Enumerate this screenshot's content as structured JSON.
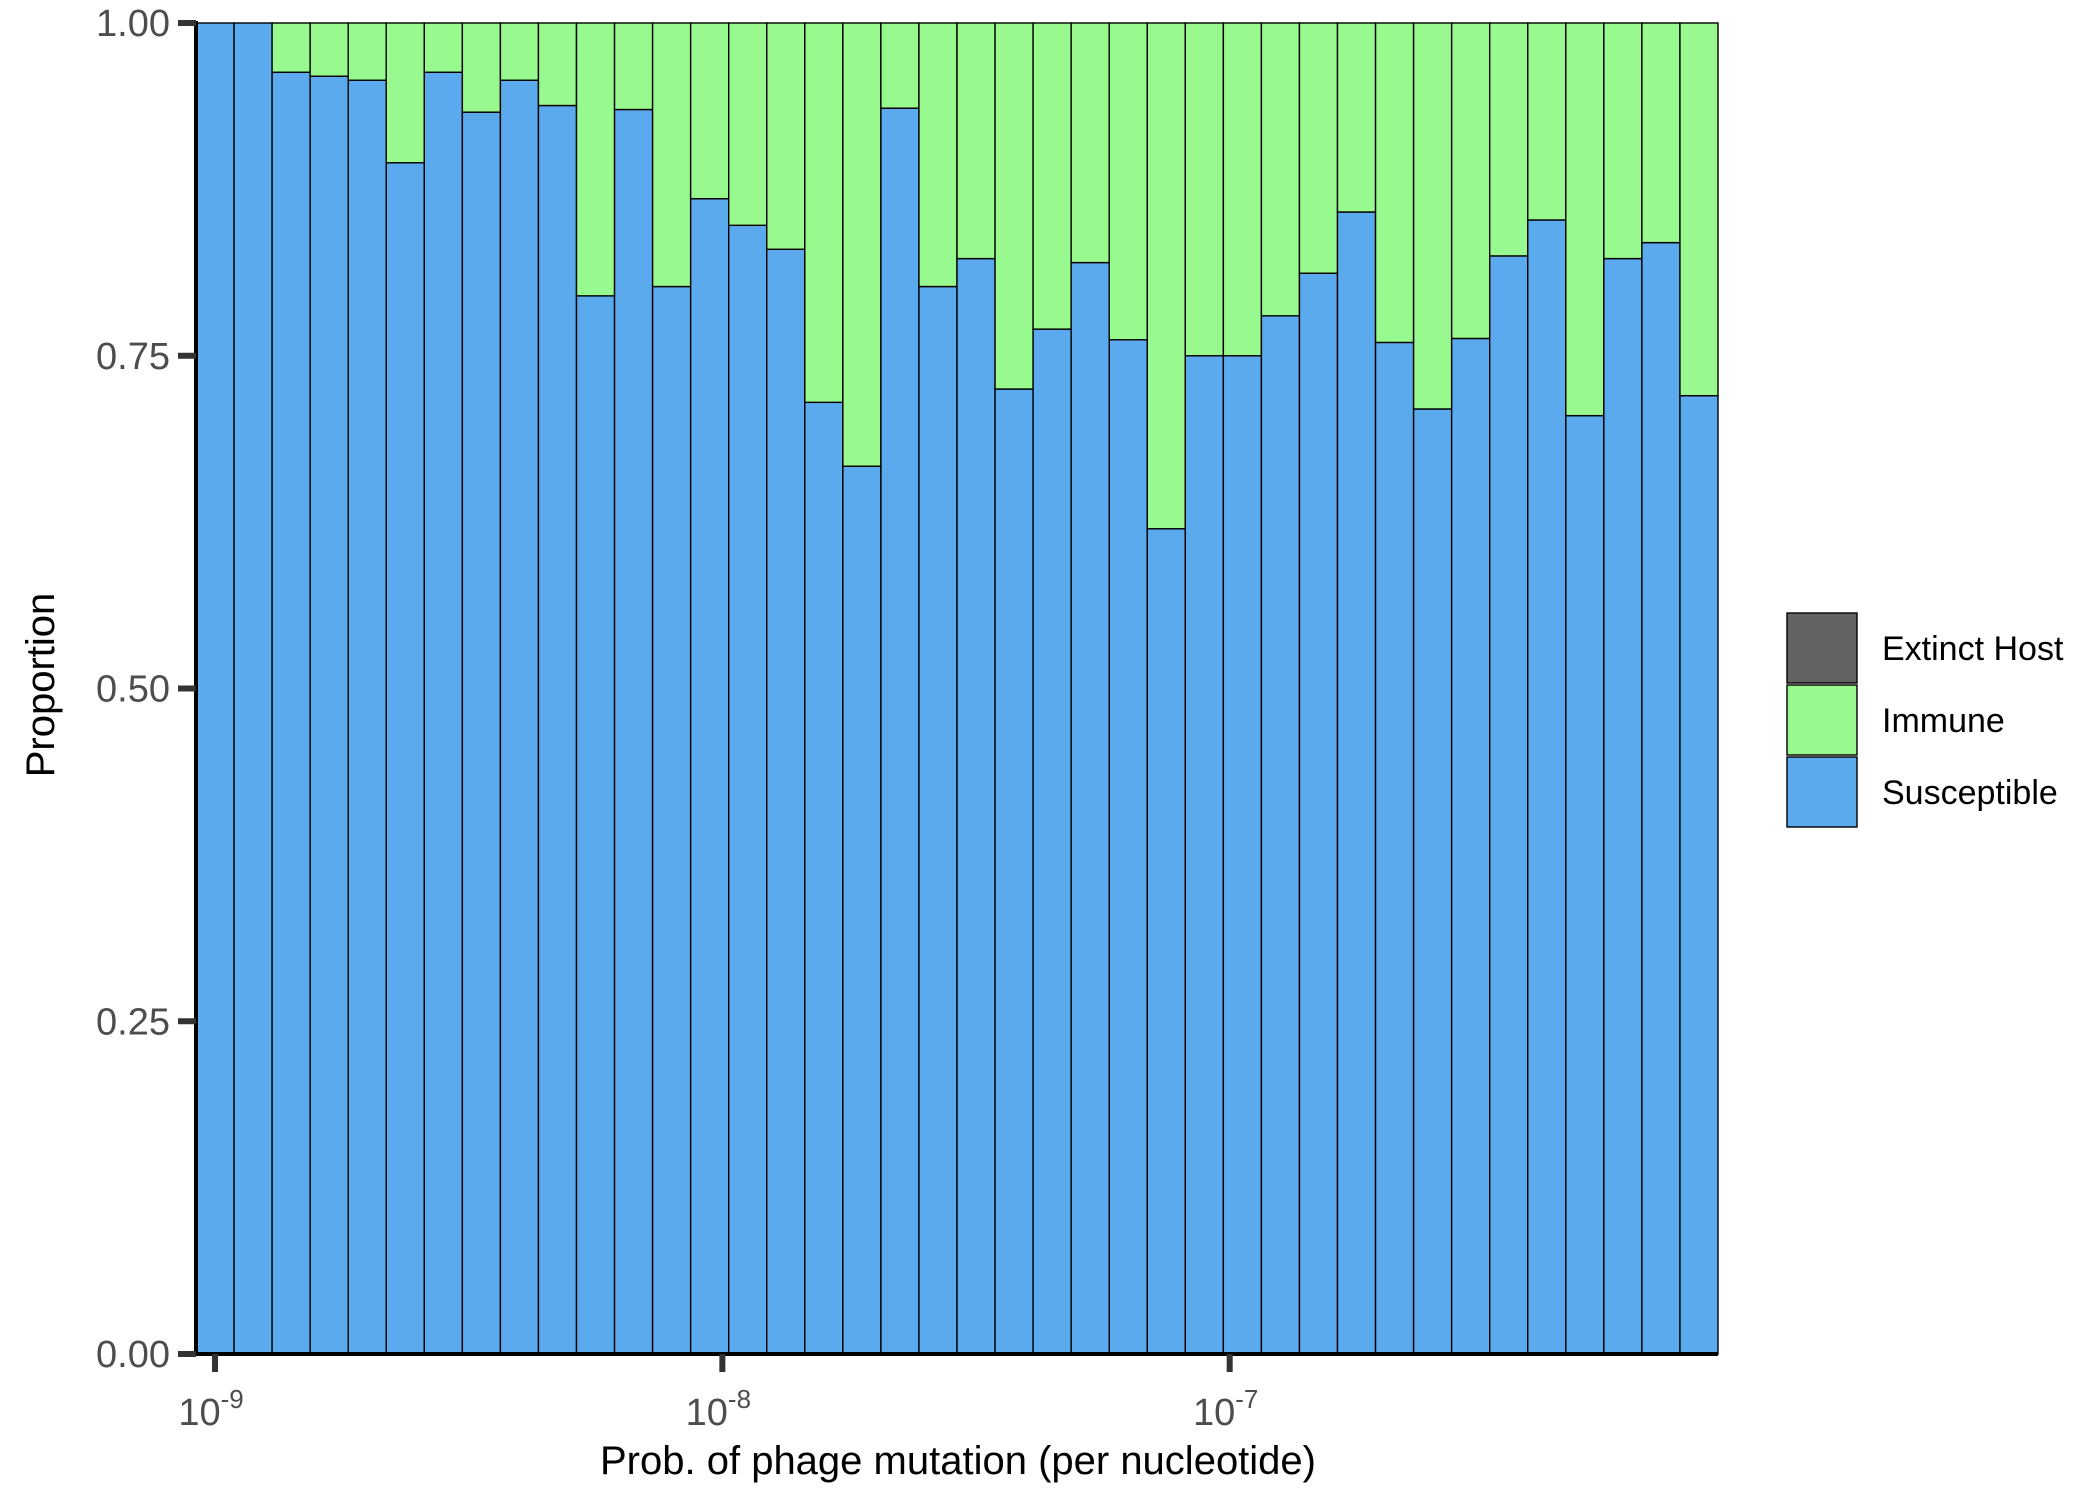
{
  "chart_data": {
    "type": "bar",
    "stacked": true,
    "normalized": true,
    "xlabel": "Prob. of phage mutation (per nucleotide)",
    "ylabel": "Proportion",
    "x_scale": "log10",
    "x_ticks": [
      {
        "value": 1e-09,
        "base": "10",
        "exp": "-9"
      },
      {
        "value": 1e-08,
        "base": "10",
        "exp": "-8"
      },
      {
        "value": 1e-07,
        "base": "10",
        "exp": "-7"
      }
    ],
    "y_ticks": [
      "0.00",
      "0.25",
      "0.50",
      "0.75",
      "1.00"
    ],
    "ylim": [
      0,
      1
    ],
    "bin_centers_log10": [
      -9.0,
      -8.925,
      -8.85,
      -8.775,
      -8.7,
      -8.625,
      -8.55,
      -8.475,
      -8.4,
      -8.325,
      -8.25,
      -8.175,
      -8.1,
      -8.025,
      -7.95,
      -7.875,
      -7.8,
      -7.725,
      -7.65,
      -7.575,
      -7.5,
      -7.425,
      -7.35,
      -7.275,
      -7.2,
      -7.125,
      -7.05,
      -6.975,
      -6.9,
      -6.825,
      -6.75,
      -6.675,
      -6.6,
      -6.525,
      -6.45,
      -6.375,
      -6.3,
      -6.225,
      -6.15,
      -6.075
    ],
    "series": [
      {
        "name": "Susceptible",
        "color": "#5aaaed",
        "values": [
          1.0,
          1.0,
          0.963,
          0.96,
          0.957,
          0.895,
          0.963,
          0.933,
          0.957,
          0.938,
          0.795,
          0.935,
          0.802,
          0.868,
          0.848,
          0.83,
          0.715,
          0.667,
          0.936,
          0.802,
          0.823,
          0.725,
          0.77,
          0.82,
          0.762,
          0.62,
          0.75,
          0.75,
          0.78,
          0.812,
          0.858,
          0.76,
          0.71,
          0.763,
          0.825,
          0.852,
          0.705,
          0.823,
          0.835,
          0.72
        ]
      },
      {
        "name": "Immune",
        "color": "#98f98e",
        "values": [
          0.0,
          0.0,
          0.037,
          0.04,
          0.043,
          0.105,
          0.037,
          0.067,
          0.043,
          0.062,
          0.205,
          0.065,
          0.198,
          0.132,
          0.152,
          0.17,
          0.285,
          0.333,
          0.064,
          0.198,
          0.177,
          0.275,
          0.23,
          0.18,
          0.238,
          0.38,
          0.25,
          0.25,
          0.22,
          0.188,
          0.142,
          0.24,
          0.29,
          0.237,
          0.175,
          0.148,
          0.295,
          0.177,
          0.165,
          0.28
        ]
      },
      {
        "name": "Extinct Host",
        "color": "#636363",
        "values": [
          0,
          0,
          0,
          0,
          0,
          0,
          0,
          0,
          0,
          0,
          0,
          0,
          0,
          0,
          0,
          0,
          0,
          0,
          0,
          0,
          0,
          0,
          0,
          0,
          0,
          0,
          0,
          0,
          0,
          0,
          0,
          0,
          0,
          0,
          0,
          0,
          0,
          0,
          0,
          0
        ]
      }
    ],
    "legend": {
      "placement": "right",
      "items": [
        {
          "label": "Extinct Host",
          "color": "#636363"
        },
        {
          "label": "Immune",
          "color": "#98f98e"
        },
        {
          "label": "Susceptible",
          "color": "#5aaaed"
        }
      ]
    }
  }
}
